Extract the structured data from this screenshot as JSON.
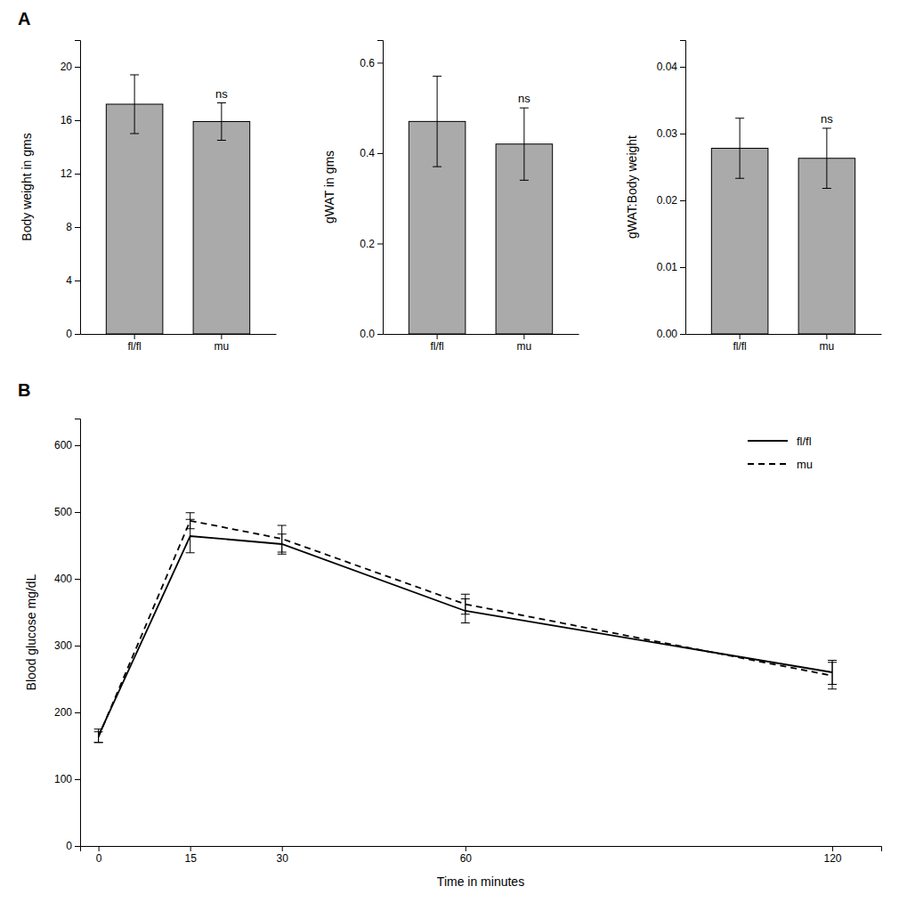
{
  "chart_data": [
    {
      "type": "bar",
      "title": "A",
      "categories": [
        "fl/fl",
        "mu"
      ],
      "values": [
        17.2,
        15.9
      ],
      "errors": [
        2.2,
        1.4
      ],
      "color": "#aaaaaa",
      "ylabel": "Body weight in gms",
      "ylim": [
        0,
        22
      ],
      "yticks": [
        0,
        4,
        8,
        12,
        16,
        20
      ],
      "annotations": [
        {
          "text": "ns",
          "x": "mu"
        }
      ]
    },
    {
      "type": "bar",
      "categories": [
        "fl/fl",
        "mu"
      ],
      "values": [
        0.47,
        0.42
      ],
      "errors": [
        0.1,
        0.08
      ],
      "color": "#aaaaaa",
      "ylabel": "gWAT in gms",
      "ylim": [
        0,
        0.65
      ],
      "yticks": [
        {
          "value": 0,
          "label": "0.0"
        },
        0.2,
        0.4,
        0.6
      ],
      "annotations": [
        {
          "text": "ns",
          "x": "mu"
        }
      ]
    },
    {
      "type": "bar",
      "categories": [
        "fl/fl",
        "mu"
      ],
      "values": [
        0.0278,
        0.0263
      ],
      "errors": [
        0.0045,
        0.0045
      ],
      "color": "#aaaaaa",
      "ylabel": "gWAT:Body weight",
      "ylim": [
        0,
        0.044
      ],
      "yticks": [
        {
          "value": 0,
          "label": "0.00"
        },
        0.01,
        0.02,
        0.03,
        0.04
      ],
      "annotations": [
        {
          "text": "ns",
          "x": "mu"
        }
      ]
    },
    {
      "type": "line",
      "title": "B",
      "x": [
        0,
        15,
        30,
        60,
        120
      ],
      "series": [
        {
          "name": "fl/fl",
          "color": "#000000",
          "line_style": "solid",
          "values": [
            165,
            464,
            452,
            352,
            260
          ],
          "errors": [
            10,
            25,
            15,
            18,
            18
          ]
        },
        {
          "name": "mu",
          "color": "#000000",
          "line_style": "dashed",
          "values": [
            163,
            487,
            460,
            362,
            255
          ],
          "errors": [
            8,
            12,
            20,
            15,
            20
          ]
        }
      ],
      "xlabel": "Time in minutes",
      "ylabel": "Blood glucose mg/dL",
      "xlim": [
        -3,
        128
      ],
      "xticks": [
        0,
        15,
        30,
        60,
        120
      ],
      "ylim": [
        0,
        640
      ],
      "yticks": [
        0,
        100,
        200,
        300,
        400,
        500,
        600
      ],
      "legend": "upper right"
    }
  ]
}
